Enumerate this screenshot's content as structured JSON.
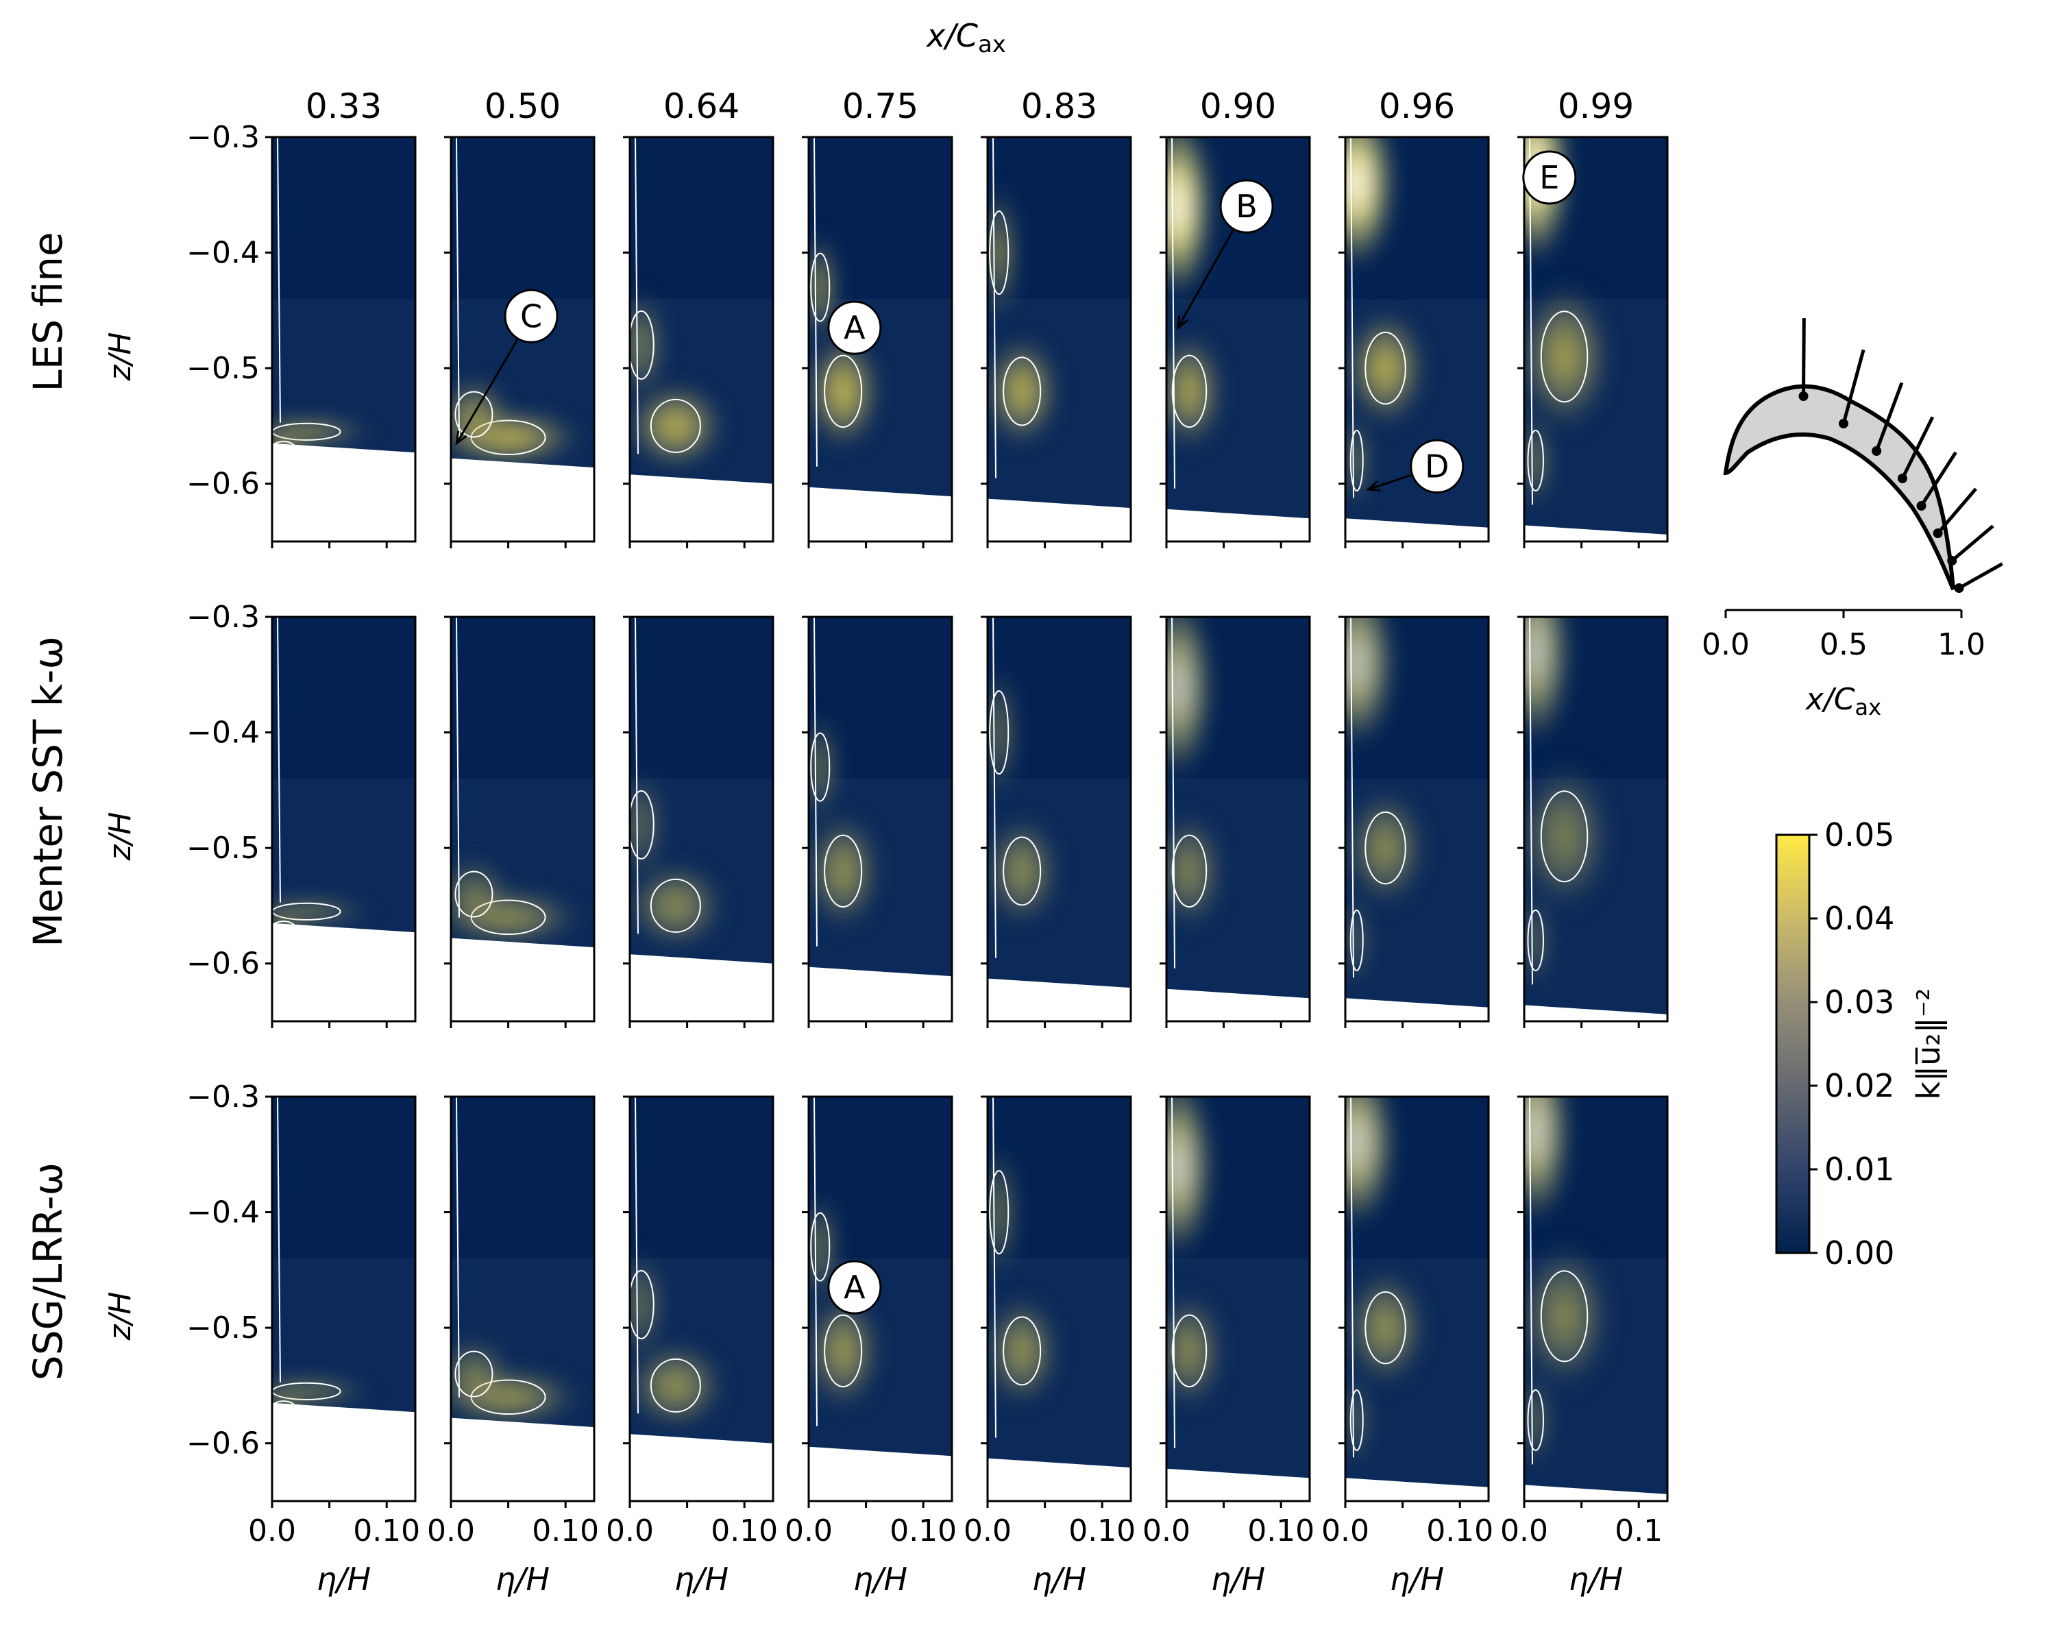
{
  "chart_data": {
    "type": "heatmap",
    "title": "",
    "xlabel_top": {
      "main": "x/C",
      "sub": "ax"
    },
    "columns": [
      "0.33",
      "0.50",
      "0.64",
      "0.75",
      "0.83",
      "0.90",
      "0.96",
      "0.99"
    ],
    "rows": [
      {
        "name": "LES fine",
        "labels": [
          {
            "col": 5,
            "text": "B"
          },
          {
            "col": 1,
            "text": "C"
          },
          {
            "col": 3,
            "text": "A"
          },
          {
            "col": 6,
            "text": "D"
          },
          {
            "col": 7,
            "text": "E"
          }
        ]
      },
      {
        "name": "Menter SST k-ω",
        "labels": []
      },
      {
        "name": "SSG/LRR-ω",
        "labels": [
          {
            "col": 3,
            "text": "A"
          }
        ]
      }
    ],
    "ylabel": "z/H",
    "xlabel": "η/H",
    "yticks": [
      "−0.3",
      "−0.4",
      "−0.5",
      "−0.6"
    ],
    "ylim": [
      -0.65,
      -0.3
    ],
    "xticks": [
      "0.0",
      "0.10"
    ],
    "xticks_last_col": [
      "0.0",
      "0.1"
    ],
    "xlim": [
      0,
      0.125
    ],
    "wall_z": [
      -0.565,
      -0.578,
      -0.592,
      -0.603,
      -0.613,
      -0.622,
      -0.63,
      -0.636
    ],
    "colorbar": {
      "label": "k‖u̅₂‖⁻²",
      "min": 0.0,
      "max": 0.05,
      "ticks": [
        "0.00",
        "0.01",
        "0.02",
        "0.03",
        "0.04",
        "0.05"
      ],
      "colors": [
        "#00204d",
        "#31446b",
        "#666970",
        "#958f78",
        "#cbba69",
        "#ffe945"
      ]
    },
    "inset": {
      "xlabel": {
        "main": "x/C",
        "sub": "ax"
      },
      "xticks": [
        "0.0",
        "0.5",
        "1.0"
      ],
      "stations": [
        0.33,
        0.5,
        0.64,
        0.75,
        0.83,
        0.9,
        0.96,
        0.99
      ]
    }
  }
}
